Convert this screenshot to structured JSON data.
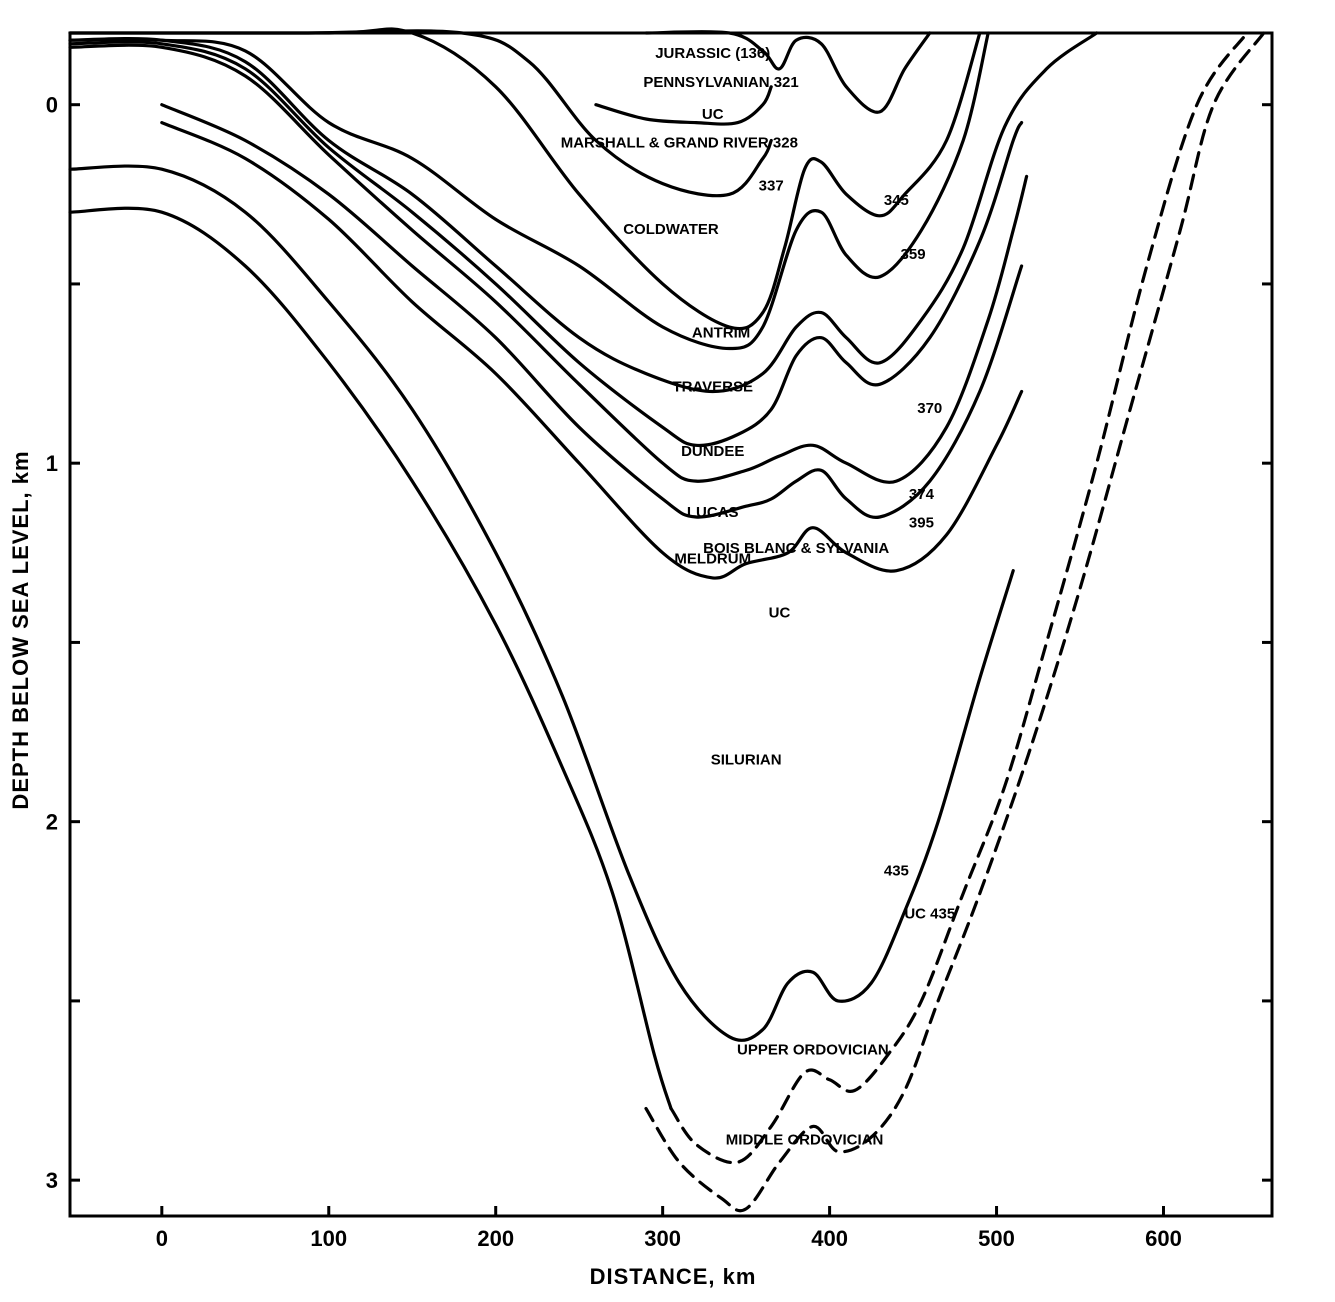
{
  "chart_data": {
    "type": "line",
    "title": "",
    "xlabel": "DISTANCE, km",
    "ylabel": "DEPTH BELOW SEA LEVEL, km",
    "xlim": [
      -55,
      665
    ],
    "ylim": [
      -0.2,
      3.1
    ],
    "y_inverted": true,
    "x_ticks": [
      0,
      100,
      200,
      300,
      400,
      500,
      600
    ],
    "y_ticks": [
      0,
      0.5,
      1,
      1.5,
      2,
      2.5,
      3
    ],
    "y_tick_labels": [
      "0",
      "",
      "1",
      "",
      "2",
      "",
      "3"
    ],
    "grid": false,
    "series": [
      {
        "name": "Jurassic (136) / Pennsylvanian 321",
        "style": "solid",
        "points": [
          [
            290,
            -0.2
          ],
          [
            340,
            -0.2
          ],
          [
            360,
            -0.15
          ],
          [
            370,
            -0.1
          ],
          [
            380,
            -0.18
          ],
          [
            395,
            -0.17
          ],
          [
            410,
            -0.05
          ],
          [
            430,
            0.02
          ],
          [
            445,
            -0.1
          ],
          [
            460,
            -0.2
          ]
        ]
      },
      {
        "name": "UC",
        "style": "solid",
        "points": [
          [
            260,
            0.0
          ],
          [
            290,
            0.04
          ],
          [
            320,
            0.05
          ],
          [
            345,
            0.05
          ],
          [
            360,
            0.0
          ],
          [
            365,
            -0.05
          ]
        ]
      },
      {
        "name": "328",
        "style": "solid",
        "points": [
          [
            -55,
            -0.2
          ],
          [
            80,
            -0.2
          ],
          [
            180,
            -0.2
          ],
          [
            220,
            -0.12
          ],
          [
            260,
            0.1
          ],
          [
            300,
            0.22
          ],
          [
            340,
            0.25
          ],
          [
            360,
            0.15
          ],
          [
            365,
            0.1
          ]
        ]
      },
      {
        "name": "337",
        "style": "solid",
        "points": [
          [
            -55,
            -0.2
          ],
          [
            100,
            -0.2
          ],
          [
            150,
            -0.2
          ],
          [
            200,
            -0.05
          ],
          [
            250,
            0.25
          ],
          [
            300,
            0.5
          ],
          [
            340,
            0.62
          ],
          [
            360,
            0.58
          ],
          [
            373,
            0.4
          ],
          [
            385,
            0.18
          ],
          [
            395,
            0.16
          ],
          [
            410,
            0.25
          ],
          [
            430,
            0.31
          ],
          [
            445,
            0.25
          ],
          [
            470,
            0.1
          ],
          [
            490,
            -0.2
          ]
        ]
      },
      {
        "name": "345",
        "style": "solid",
        "points": [
          [
            -55,
            -0.18
          ],
          [
            0,
            -0.18
          ],
          [
            50,
            -0.15
          ],
          [
            100,
            0.05
          ],
          [
            150,
            0.15
          ],
          [
            200,
            0.32
          ],
          [
            250,
            0.45
          ],
          [
            300,
            0.62
          ],
          [
            340,
            0.68
          ],
          [
            360,
            0.62
          ],
          [
            380,
            0.35
          ],
          [
            395,
            0.3
          ],
          [
            410,
            0.42
          ],
          [
            430,
            0.48
          ],
          [
            455,
            0.35
          ],
          [
            480,
            0.1
          ],
          [
            495,
            -0.2
          ]
        ]
      },
      {
        "name": "359",
        "style": "solid",
        "points": [
          [
            -55,
            -0.18
          ],
          [
            0,
            -0.18
          ],
          [
            50,
            -0.12
          ],
          [
            100,
            0.1
          ],
          [
            150,
            0.25
          ],
          [
            200,
            0.45
          ],
          [
            250,
            0.65
          ],
          [
            290,
            0.75
          ],
          [
            330,
            0.8
          ],
          [
            360,
            0.75
          ],
          [
            380,
            0.62
          ],
          [
            395,
            0.58
          ],
          [
            410,
            0.65
          ],
          [
            430,
            0.72
          ],
          [
            455,
            0.6
          ],
          [
            480,
            0.4
          ],
          [
            505,
            0.06
          ],
          [
            530,
            -0.1
          ],
          [
            560,
            -0.2
          ]
        ]
      },
      {
        "name": "370",
        "style": "solid",
        "points": [
          [
            -55,
            -0.17
          ],
          [
            0,
            -0.17
          ],
          [
            50,
            -0.1
          ],
          [
            100,
            0.12
          ],
          [
            150,
            0.3
          ],
          [
            200,
            0.5
          ],
          [
            250,
            0.72
          ],
          [
            300,
            0.9
          ],
          [
            320,
            0.95
          ],
          [
            345,
            0.92
          ],
          [
            365,
            0.85
          ],
          [
            380,
            0.7
          ],
          [
            395,
            0.65
          ],
          [
            410,
            0.72
          ],
          [
            430,
            0.78
          ],
          [
            460,
            0.65
          ],
          [
            490,
            0.38
          ],
          [
            510,
            0.1
          ],
          [
            515,
            0.05
          ]
        ]
      },
      {
        "name": "374",
        "style": "solid",
        "points": [
          [
            -55,
            -0.16
          ],
          [
            0,
            -0.16
          ],
          [
            50,
            -0.08
          ],
          [
            100,
            0.14
          ],
          [
            150,
            0.35
          ],
          [
            200,
            0.55
          ],
          [
            250,
            0.78
          ],
          [
            300,
            1.0
          ],
          [
            320,
            1.05
          ],
          [
            350,
            1.02
          ],
          [
            370,
            0.98
          ],
          [
            390,
            0.95
          ],
          [
            410,
            1.0
          ],
          [
            440,
            1.05
          ],
          [
            470,
            0.9
          ],
          [
            495,
            0.6
          ],
          [
            510,
            0.35
          ],
          [
            518,
            0.2
          ]
        ]
      },
      {
        "name": "395",
        "style": "solid",
        "points": [
          [
            0,
            0.0
          ],
          [
            50,
            0.1
          ],
          [
            100,
            0.25
          ],
          [
            150,
            0.45
          ],
          [
            200,
            0.65
          ],
          [
            250,
            0.9
          ],
          [
            300,
            1.1
          ],
          [
            320,
            1.15
          ],
          [
            350,
            1.12
          ],
          [
            365,
            1.1
          ],
          [
            380,
            1.05
          ],
          [
            395,
            1.02
          ],
          [
            410,
            1.1
          ],
          [
            430,
            1.15
          ],
          [
            460,
            1.05
          ],
          [
            490,
            0.8
          ],
          [
            515,
            0.45
          ]
        ]
      },
      {
        "name": "UC 395",
        "style": "solid",
        "points": [
          [
            0,
            0.05
          ],
          [
            50,
            0.15
          ],
          [
            100,
            0.32
          ],
          [
            150,
            0.55
          ],
          [
            200,
            0.75
          ],
          [
            250,
            1.0
          ],
          [
            300,
            1.25
          ],
          [
            330,
            1.32
          ],
          [
            350,
            1.28
          ],
          [
            375,
            1.25
          ],
          [
            390,
            1.18
          ],
          [
            410,
            1.25
          ],
          [
            440,
            1.3
          ],
          [
            470,
            1.2
          ],
          [
            500,
            0.95
          ],
          [
            515,
            0.8
          ]
        ]
      },
      {
        "name": "435",
        "style": "solid",
        "points": [
          [
            -55,
            0.18
          ],
          [
            0,
            0.18
          ],
          [
            50,
            0.3
          ],
          [
            100,
            0.55
          ],
          [
            150,
            0.85
          ],
          [
            200,
            1.25
          ],
          [
            240,
            1.65
          ],
          [
            280,
            2.15
          ],
          [
            310,
            2.45
          ],
          [
            340,
            2.6
          ],
          [
            360,
            2.58
          ],
          [
            375,
            2.45
          ],
          [
            390,
            2.42
          ],
          [
            405,
            2.5
          ],
          [
            425,
            2.45
          ],
          [
            445,
            2.25
          ],
          [
            465,
            2.0
          ],
          [
            490,
            1.6
          ],
          [
            510,
            1.3
          ]
        ]
      },
      {
        "name": "UC 435",
        "style": "solid",
        "points": [
          [
            -55,
            0.3
          ],
          [
            0,
            0.3
          ],
          [
            50,
            0.45
          ],
          [
            100,
            0.72
          ],
          [
            150,
            1.05
          ],
          [
            200,
            1.45
          ],
          [
            240,
            1.85
          ],
          [
            270,
            2.2
          ],
          [
            295,
            2.65
          ],
          [
            305,
            2.8
          ]
        ]
      },
      {
        "name": "Upper Ordovician",
        "style": "dashed",
        "points": [
          [
            305,
            2.8
          ],
          [
            320,
            2.9
          ],
          [
            345,
            2.95
          ],
          [
            365,
            2.85
          ],
          [
            385,
            2.7
          ],
          [
            400,
            2.72
          ],
          [
            415,
            2.75
          ],
          [
            435,
            2.65
          ],
          [
            455,
            2.5
          ],
          [
            480,
            2.2
          ],
          [
            505,
            1.9
          ],
          [
            530,
            1.5
          ],
          [
            560,
            1.0
          ],
          [
            590,
            0.45
          ],
          [
            620,
            0.0
          ],
          [
            650,
            -0.2
          ]
        ]
      },
      {
        "name": "Middle Ordovician",
        "style": "dashed",
        "points": [
          [
            290,
            2.8
          ],
          [
            310,
            2.95
          ],
          [
            335,
            3.05
          ],
          [
            350,
            3.08
          ],
          [
            370,
            2.95
          ],
          [
            390,
            2.85
          ],
          [
            405,
            2.92
          ],
          [
            425,
            2.88
          ],
          [
            445,
            2.75
          ],
          [
            465,
            2.5
          ],
          [
            490,
            2.2
          ],
          [
            520,
            1.8
          ],
          [
            550,
            1.35
          ],
          [
            580,
            0.85
          ],
          [
            610,
            0.35
          ],
          [
            630,
            0.0
          ],
          [
            660,
            -0.2
          ]
        ]
      }
    ],
    "annotations": [
      {
        "text": "JURASSIC (136)",
        "x": 330,
        "y": -0.13
      },
      {
        "text": "PENNSYLVANIAN 321",
        "x": 335,
        "y": -0.05
      },
      {
        "text": "UC",
        "x": 330,
        "y": 0.04
      },
      {
        "text": "MARSHALL & GRAND RIVER 328",
        "x": 310,
        "y": 0.12
      },
      {
        "text": "337",
        "x": 365,
        "y": 0.24
      },
      {
        "text": "345",
        "x": 440,
        "y": 0.28
      },
      {
        "text": "COLDWATER",
        "x": 305,
        "y": 0.36
      },
      {
        "text": "359",
        "x": 450,
        "y": 0.43
      },
      {
        "text": "ANTRIM",
        "x": 335,
        "y": 0.65
      },
      {
        "text": "TRAVERSE",
        "x": 330,
        "y": 0.8
      },
      {
        "text": "370",
        "x": 460,
        "y": 0.86
      },
      {
        "text": "DUNDEE",
        "x": 330,
        "y": 0.98
      },
      {
        "text": "LUCAS",
        "x": 330,
        "y": 1.15
      },
      {
        "text": "374",
        "x": 455,
        "y": 1.1
      },
      {
        "text": "MELDRUM",
        "x": 330,
        "y": 1.28
      },
      {
        "text": "BOIS BLANC & SYLVANIA",
        "x": 380,
        "y": 1.25
      },
      {
        "text": "395",
        "x": 455,
        "y": 1.18
      },
      {
        "text": "UC",
        "x": 370,
        "y": 1.43
      },
      {
        "text": "SILURIAN",
        "x": 350,
        "y": 1.84
      },
      {
        "text": "435",
        "x": 440,
        "y": 2.15
      },
      {
        "text": "UC 435",
        "x": 460,
        "y": 2.27
      },
      {
        "text": "UPPER ORDOVICIAN",
        "x": 390,
        "y": 2.65
      },
      {
        "text": "MIDDLE ORDOVICIAN",
        "x": 385,
        "y": 2.9
      }
    ]
  }
}
